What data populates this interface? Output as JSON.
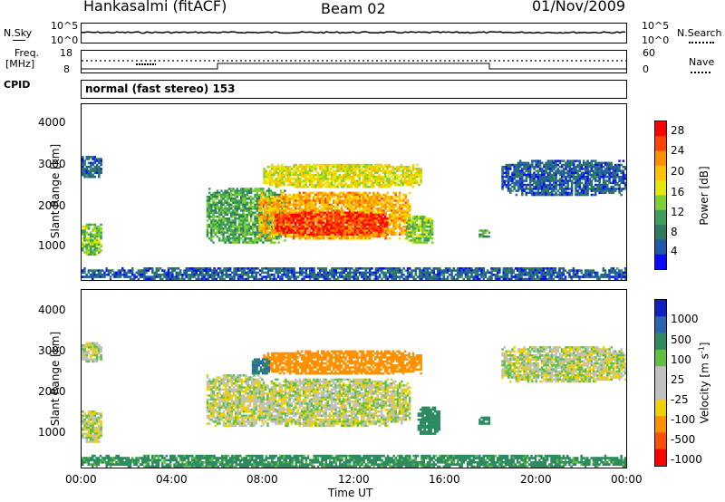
{
  "header": {
    "station": "Hankasalmi (fitACF)",
    "beam": "Beam 02",
    "date": "01/Nov/2009"
  },
  "top_panels": {
    "nsky_label": "N.Sky",
    "nsky_tick_top": "10^5",
    "nsky_tick_bottom": "10^0",
    "nsearch_label": "N.Search",
    "nsearch_tick_top": "10^5",
    "nsearch_tick_bottom": "10^0",
    "freq_label_1": "Freq.",
    "freq_label_2": "[MHz]",
    "freq_tick_top": "18",
    "freq_tick_bottom": "8",
    "nave_label": "Nave",
    "nave_tick_top": "60",
    "nave_tick_bottom": "0",
    "cpid_label": "CPID",
    "cpid_text": "normal (fast stereo) 153"
  },
  "power_colorbar": {
    "title": "Power [dB]",
    "ticks": [
      "28",
      "24",
      "20",
      "16",
      "12",
      "8",
      "4"
    ],
    "colors": [
      "#ff0000",
      "#ff4400",
      "#ff9000",
      "#ffc200",
      "#e6e600",
      "#7fd030",
      "#3ca05a",
      "#2e7a60",
      "#1f5aa8",
      "#0a0aff"
    ]
  },
  "velocity_colorbar": {
    "title": "Velocity [m s",
    "title_sup": "-1",
    "title_end": "]",
    "ticks": [
      "1000",
      "500",
      "100",
      "25",
      "-25",
      "-100",
      "-500",
      "-1000"
    ],
    "colors": [
      "#1020c0",
      "#2a66b0",
      "#2e8a60",
      "#60c040",
      "#c0c0c0",
      "#c0c0c0",
      "#f0d000",
      "#ff9000",
      "#ff5000",
      "#ff0000"
    ]
  },
  "axes": {
    "ylabel": "Slant Range [km]",
    "xlabel": "Time UT",
    "yticks": [
      "4000",
      "3000",
      "2000",
      "1000"
    ],
    "xticks": [
      "00:00",
      "04:00",
      "08:00",
      "12:00",
      "16:00",
      "20:00",
      "00:00"
    ]
  },
  "chart_data": [
    {
      "type": "heatmap",
      "panel": "power",
      "ylabel": "Slant Range [km]",
      "xlabel": "Time UT",
      "x_range_hours": [
        0,
        24
      ],
      "ylim": [
        180,
        4600
      ],
      "colorbar": {
        "label": "Power [dB]",
        "ticks": [
          4,
          8,
          12,
          16,
          20,
          24,
          28
        ]
      },
      "regions": [
        {
          "t0": 0.0,
          "t1": 24.0,
          "r0": 180,
          "r1": 500,
          "value": 6
        },
        {
          "t0": 0.0,
          "t1": 0.9,
          "r0": 2750,
          "r1": 3300,
          "value": 6
        },
        {
          "t0": 0.0,
          "t1": 0.9,
          "r0": 800,
          "r1": 1600,
          "value": 14
        },
        {
          "t0": 5.5,
          "t1": 9.0,
          "r0": 1100,
          "r1": 2500,
          "value": 12
        },
        {
          "t0": 7.8,
          "t1": 14.5,
          "r0": 1200,
          "r1": 2400,
          "value": 22
        },
        {
          "t0": 8.5,
          "t1": 13.5,
          "r0": 1300,
          "r1": 1900,
          "value": 28
        },
        {
          "t0": 8.0,
          "t1": 15.0,
          "r0": 2500,
          "r1": 3100,
          "value": 18
        },
        {
          "t0": 14.3,
          "t1": 15.5,
          "r0": 1100,
          "r1": 1800,
          "value": 14
        },
        {
          "t0": 17.5,
          "t1": 18.0,
          "r0": 1250,
          "r1": 1450,
          "value": 12
        },
        {
          "t0": 18.5,
          "t1": 24.0,
          "r0": 2300,
          "r1": 3200,
          "value": 6
        }
      ]
    },
    {
      "type": "heatmap",
      "panel": "velocity",
      "ylabel": "Slant Range [km]",
      "xlabel": "Time UT",
      "x_range_hours": [
        0,
        24
      ],
      "ylim": [
        180,
        4600
      ],
      "colorbar": {
        "label": "Velocity [m s-1]",
        "ticks": [
          -1000,
          -500,
          -100,
          -25,
          25,
          100,
          500,
          1000
        ]
      },
      "regions": [
        {
          "t0": 0.0,
          "t1": 24.0,
          "r0": 180,
          "r1": 500,
          "value": 100
        },
        {
          "t0": 0.0,
          "t1": 0.9,
          "r0": 800,
          "r1": 1600,
          "value": 0
        },
        {
          "t0": 0.0,
          "t1": 0.9,
          "r0": 2800,
          "r1": 3300,
          "value": 0
        },
        {
          "t0": 5.5,
          "t1": 8.0,
          "r0": 1200,
          "r1": 2500,
          "value": 0
        },
        {
          "t0": 7.8,
          "t1": 14.5,
          "r0": 1200,
          "r1": 2400,
          "value": 0
        },
        {
          "t0": 8.0,
          "t1": 15.0,
          "r0": 2500,
          "r1": 3100,
          "value": -200
        },
        {
          "t0": 7.5,
          "t1": 8.3,
          "r0": 2500,
          "r1": 2900,
          "value": 300
        },
        {
          "t0": 14.8,
          "t1": 15.8,
          "r0": 1000,
          "r1": 1700,
          "value": 150
        },
        {
          "t0": 17.5,
          "t1": 18.0,
          "r0": 1250,
          "r1": 1450,
          "value": 150
        },
        {
          "t0": 18.5,
          "t1": 24.0,
          "r0": 2300,
          "r1": 3200,
          "value": 0
        }
      ]
    }
  ]
}
